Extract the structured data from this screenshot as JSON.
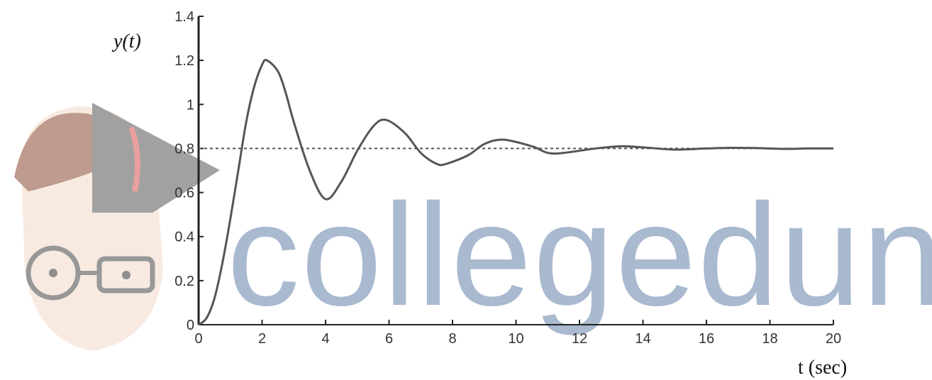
{
  "watermark": {
    "text": "collegedunia",
    "color": "#a9b9cf"
  },
  "chart_data": {
    "type": "line",
    "title": "",
    "xlabel": "t (sec)",
    "ylabel": "y(t)",
    "xlim": [
      0,
      20
    ],
    "ylim": [
      0,
      1.4
    ],
    "xticks": [
      0,
      2,
      4,
      6,
      8,
      10,
      12,
      14,
      16,
      18,
      20
    ],
    "yticks": [
      0,
      0.2,
      0.4,
      0.6,
      0.8,
      1,
      1.2,
      1.4
    ],
    "x_tick_labels": [
      "0",
      "2",
      "4",
      "6",
      "8",
      "10",
      "12",
      "14",
      "16",
      "18",
      "20"
    ],
    "y_tick_labels": [
      "0",
      "0.2",
      "0.4",
      "0.6",
      "0.8",
      "1",
      "1.2",
      "1.4"
    ],
    "grid": false,
    "reference_line": {
      "y": 0.8,
      "style": "dotted",
      "color": "#555555"
    },
    "series": [
      {
        "color": "#555555",
        "x": [
          0,
          0.25,
          0.5,
          0.75,
          1,
          1.25,
          1.5,
          1.75,
          2,
          2.15,
          2.5,
          2.75,
          3,
          3.5,
          4,
          4.5,
          5,
          5.5,
          5.9,
          6.5,
          7,
          7.5,
          7.8,
          8.5,
          9,
          9.6,
          10.5,
          11,
          11.5,
          12.5,
          13.3,
          14,
          15,
          16,
          16.8,
          17.5,
          18.5,
          19.2,
          20
        ],
        "y": [
          0,
          0.03,
          0.12,
          0.28,
          0.48,
          0.7,
          0.92,
          1.08,
          1.18,
          1.2,
          1.15,
          1.05,
          0.92,
          0.7,
          0.57,
          0.65,
          0.79,
          0.9,
          0.93,
          0.87,
          0.78,
          0.73,
          0.73,
          0.77,
          0.82,
          0.84,
          0.81,
          0.78,
          0.78,
          0.8,
          0.81,
          0.805,
          0.795,
          0.8,
          0.803,
          0.802,
          0.798,
          0.8,
          0.8
        ]
      }
    ]
  }
}
